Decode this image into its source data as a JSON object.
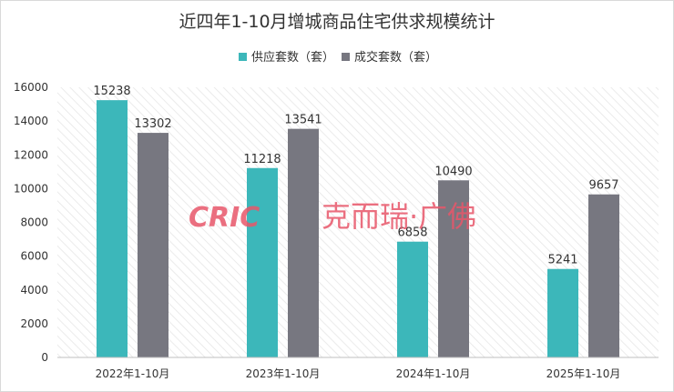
{
  "chart_data": {
    "type": "bar",
    "title": "近四年1-10月增城商品住宅供求规模统计",
    "categories": [
      "2022年1-10月",
      "2023年1-10月",
      "2024年1-10月",
      "2025年1-10月"
    ],
    "series": [
      {
        "name": "供应套数（套）",
        "color": "#3cb7ba",
        "values": [
          15238,
          11218,
          6858,
          5241
        ]
      },
      {
        "name": "成交套数（套）",
        "color": "#777780",
        "values": [
          13302,
          13541,
          10490,
          9657
        ]
      }
    ],
    "yticks": [
      0,
      2000,
      4000,
      6000,
      8000,
      10000,
      12000,
      14000,
      16000
    ],
    "ylim": [
      0,
      16000
    ],
    "legend_position": "top-center",
    "grid": false,
    "plot_background": "diagonal-hatch"
  },
  "watermark": {
    "brand": "CRIC",
    "text": "克而瑞·广佛",
    "color": "#e8576a"
  }
}
